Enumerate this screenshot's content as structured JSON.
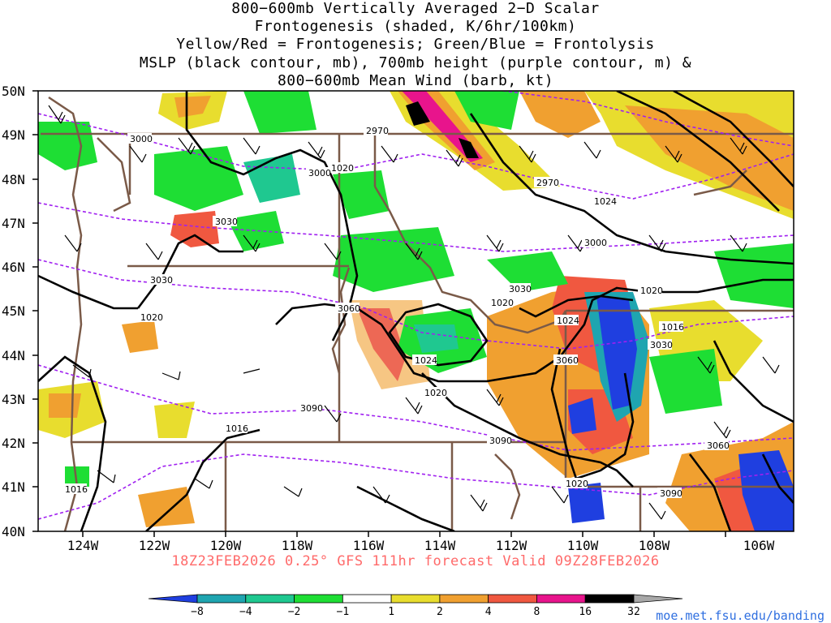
{
  "title_lines": [
    "800−600mb Vertically Averaged 2−D Scalar",
    "Frontogenesis (shaded, K/6hr/100km)",
    "Yellow/Red = Frontogenesis;  Green/Blue = Frontolysis",
    "MSLP (black contour, mb), 700mb height (purple contour, m) &",
    "800−600mb Mean Wind (barb, kt)"
  ],
  "footer": "18Z23FEB2026 0.25° GFS 111hr forecast Valid 09Z28FEB2026",
  "credit": "moe.met.fsu.edu/banding",
  "axes": {
    "lon_labels": [
      "124W",
      "122W",
      "120W",
      "118W",
      "116W",
      "114W",
      "112W",
      "110W",
      "108W",
      "106W"
    ],
    "lat_labels": [
      "50N",
      "49N",
      "48N",
      "47N",
      "46N",
      "45N",
      "44N",
      "43N",
      "42N",
      "41N",
      "40N"
    ]
  },
  "colorbar": {
    "labels": [
      "−8",
      "−4",
      "−2",
      "−1",
      "1",
      "2",
      "4",
      "8",
      "16",
      "32"
    ],
    "colors": [
      "#1f3fe0",
      "#1fa5b0",
      "#1fc890",
      "#1ede34",
      "#ffffff",
      "#e8dd2e",
      "#f0a030",
      "#f05840",
      "#e8148c",
      "#000000",
      "#a8a8a8"
    ]
  },
  "contour_labels": {
    "mslp": [
      "1020",
      "1020",
      "1024",
      "1020",
      "1020",
      "1024",
      "1020",
      "1024",
      "1016",
      "1016",
      "1016",
      "1020"
    ],
    "height": [
      "3000",
      "3000",
      "2970",
      "2970",
      "3030",
      "3030",
      "3060",
      "3000",
      "3030",
      "3060",
      "3090",
      "3090",
      "3060",
      "3030",
      "3090"
    ]
  }
}
